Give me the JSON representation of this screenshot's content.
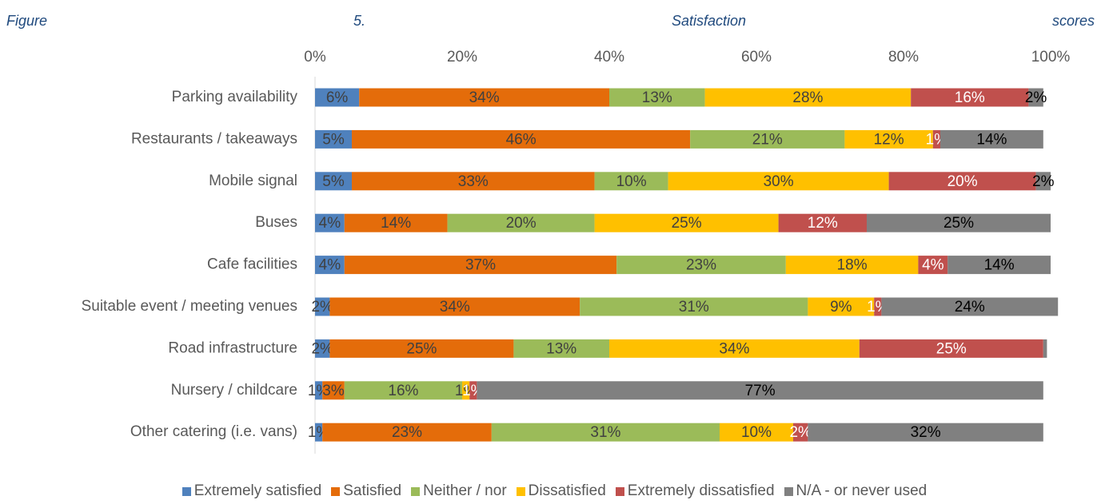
{
  "chart_data": {
    "type": "stacked_bar_horizontal",
    "title": "Figure 5. Satisfaction scores",
    "categories": [
      "Parking availability",
      "Restaurants / takeaways",
      "Mobile signal",
      "Buses",
      "Cafe facilities",
      "Suitable event / meeting venues",
      "Road infrastructure",
      "Nursery / childcare",
      "Other catering (i.e. vans)"
    ],
    "series": [
      {
        "name": "Extremely satisfied",
        "color": "#4f81bd",
        "values": [
          6,
          5,
          5,
          4,
          4,
          2,
          2,
          1,
          1
        ],
        "value_labels": [
          "6%",
          "5%",
          "5%",
          "4%",
          "4%",
          "2%",
          "2%",
          "1%",
          "1%"
        ]
      },
      {
        "name": "Satisfied",
        "color": "#e46c0a",
        "values": [
          34,
          46,
          33,
          14,
          37,
          34,
          25,
          3,
          23
        ],
        "value_labels": [
          "34%",
          "46%",
          "33%",
          "14%",
          "37%",
          "34%",
          "25%",
          "3%",
          "23%"
        ]
      },
      {
        "name": "Neither / nor",
        "color": "#9bbb59",
        "values": [
          13,
          21,
          10,
          20,
          23,
          31,
          13,
          16,
          31
        ],
        "value_labels": [
          "13%",
          "21%",
          "10%",
          "20%",
          "23%",
          "31%",
          "13%",
          "16%",
          "31%"
        ]
      },
      {
        "name": "Dissatisfied",
        "color": "#ffc000",
        "values": [
          28,
          12,
          30,
          25,
          18,
          9,
          34,
          1,
          10
        ],
        "value_labels": [
          "28%",
          "12%",
          "30%",
          "25%",
          "18%",
          "9%",
          "34%",
          "1%",
          "10%"
        ]
      },
      {
        "name": "Extremely dissatisfied",
        "color": "#c0504d",
        "values": [
          16,
          1,
          20,
          12,
          4,
          1,
          25,
          1,
          2
        ],
        "value_labels": [
          "16%",
          "1%",
          "20%",
          "12%",
          "4%",
          "1%",
          "25%",
          "1%",
          "2%"
        ]
      },
      {
        "name": "N/A - or never used",
        "color": "#808080",
        "values": [
          2,
          14,
          2,
          25,
          14,
          24,
          0.5,
          77,
          32
        ],
        "value_labels": [
          "2%",
          "14%",
          "2%",
          "25%",
          "14%",
          "24%",
          null,
          "77%",
          "32%"
        ]
      }
    ],
    "xlim": [
      0,
      100
    ],
    "xticks": [
      {
        "value": 0,
        "label": "0%"
      },
      {
        "value": 20,
        "label": "20%"
      },
      {
        "value": 40,
        "label": "40%"
      },
      {
        "value": 60,
        "label": "60%"
      },
      {
        "value": 80,
        "label": "80%"
      },
      {
        "value": 100,
        "label": "100%"
      }
    ],
    "legend": "bottom"
  }
}
